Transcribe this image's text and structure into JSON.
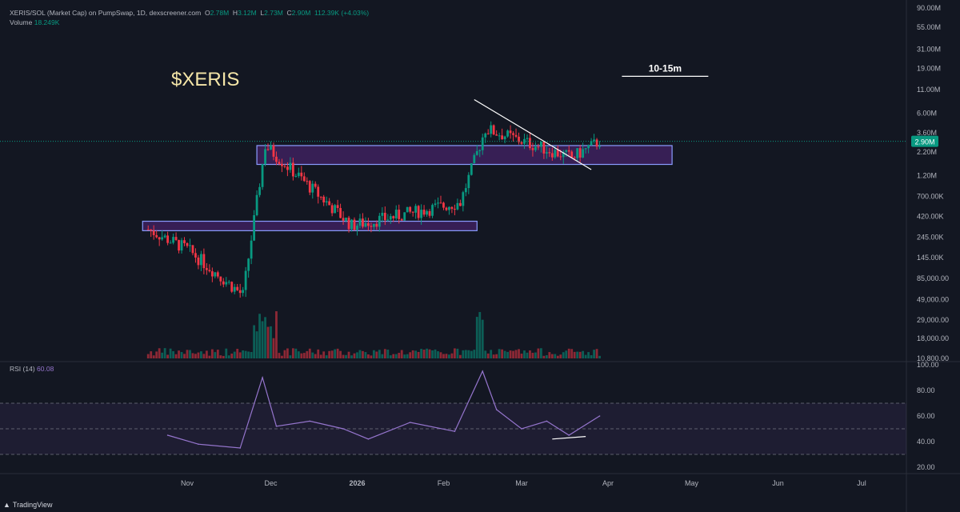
{
  "header": {
    "symbol": "XERIS/SOL (Market Cap) on PumpSwap, 1D, dexscreener.com",
    "o_label": "O",
    "o_value": "2.78M",
    "h_label": "H",
    "h_value": "3.12M",
    "l_label": "L",
    "l_value": "2.73M",
    "c_label": "C",
    "c_value": "2.90M",
    "change": "112.39K (+4.03%)",
    "volume_label": "Volume",
    "volume_value": "18.249K"
  },
  "rsi": {
    "label": "RSI (14)",
    "value": "60.08"
  },
  "annotations": {
    "ticker": "$XERIS",
    "target": "10-15m"
  },
  "branding": {
    "logo": "TradingView",
    "logo_icon": "tradingview-logo-icon"
  },
  "colors": {
    "up": "#089981",
    "down": "#f23645",
    "rsi": "#9575cd",
    "box": "#8a9cff",
    "ticker": "#f5e6a8",
    "background": "#131722"
  },
  "chart_data": [
    {
      "type": "candlestick",
      "title": "XERIS/SOL (Market Cap) on PumpSwap, 1D",
      "y_scale": "log",
      "y_ticks": [
        "90.00M",
        "55.00M",
        "31.00M",
        "19.00M",
        "11.00M",
        "6.00M",
        "3.60M",
        "2.20M",
        "1.20M",
        "700.00K",
        "420.00K",
        "245.00K",
        "145.00K",
        "85,000.00",
        "49,000.00",
        "29,000.00",
        "18,000.00",
        "10,800.00"
      ],
      "y_tick_values": [
        90000000,
        55000000,
        31000000,
        19000000,
        11000000,
        6000000,
        3600000,
        2200000,
        1200000,
        700000,
        420000,
        245000,
        145000,
        85000,
        49000,
        29000,
        18000,
        10800
      ],
      "x_ticks": [
        "Nov",
        "Dec",
        "2026",
        "Feb",
        "Mar",
        "Apr",
        "May",
        "Jun",
        "Jul"
      ],
      "last_price_label": "2.90M",
      "last_price": 2900000,
      "key_points": [
        {
          "date": "2025-10-18",
          "market_cap": 300000
        },
        {
          "date": "2025-11-01",
          "market_cap": 180000
        },
        {
          "date": "2025-11-21",
          "market_cap": 55000
        },
        {
          "date": "2025-11-29",
          "market_cap": 2600000
        },
        {
          "date": "2025-12-30",
          "market_cap": 330000
        },
        {
          "date": "2026-02-07",
          "market_cap": 600000
        },
        {
          "date": "2026-02-16",
          "market_cap": 4000000
        },
        {
          "date": "2026-03-19",
          "market_cap": 1900000
        },
        {
          "date": "2026-03-29",
          "market_cap": 2900000
        }
      ],
      "zones": [
        {
          "from_date": "2025-10-16",
          "to_date": "2026-02-13",
          "low": 290000,
          "high": 370000
        },
        {
          "from_date": "2025-11-26",
          "to_date": "2026-04-24",
          "low": 1600000,
          "high": 2600000
        }
      ],
      "trendline": {
        "from": {
          "date": "2026-02-12",
          "market_cap": 8500000
        },
        "to": {
          "date": "2026-03-26",
          "market_cap": 1400000
        }
      },
      "target_line": {
        "from_date": "2026-04-06",
        "to_date": "2026-05-07",
        "market_cap": 15500000
      }
    },
    {
      "type": "bar",
      "title": "Volume",
      "description": "Daily volume bars; largest spikes near late Nov / early Dec and mid Feb"
    },
    {
      "type": "line",
      "title": "RSI (14)",
      "y_ticks": [
        "100.00",
        "80.00",
        "60.00",
        "40.00",
        "20.00"
      ],
      "y_tick_values": [
        100,
        80,
        60,
        40,
        20
      ],
      "band": [
        30,
        70
      ],
      "midline": 50,
      "x": [
        "2025-10-25",
        "2025-11-05",
        "2025-11-20",
        "2025-11-28",
        "2025-12-03",
        "2025-12-15",
        "2025-12-27",
        "2026-01-05",
        "2026-01-20",
        "2026-02-05",
        "2026-02-15",
        "2026-02-20",
        "2026-03-01",
        "2026-03-10",
        "2026-03-18",
        "2026-03-29"
      ],
      "values": [
        45,
        38,
        35,
        90,
        52,
        56,
        50,
        42,
        55,
        48,
        95,
        65,
        50,
        56,
        45,
        60
      ],
      "divergence_line": {
        "from": {
          "date": "2026-03-12",
          "value": 42
        },
        "to": {
          "date": "2026-03-24",
          "value": 44
        }
      }
    }
  ]
}
